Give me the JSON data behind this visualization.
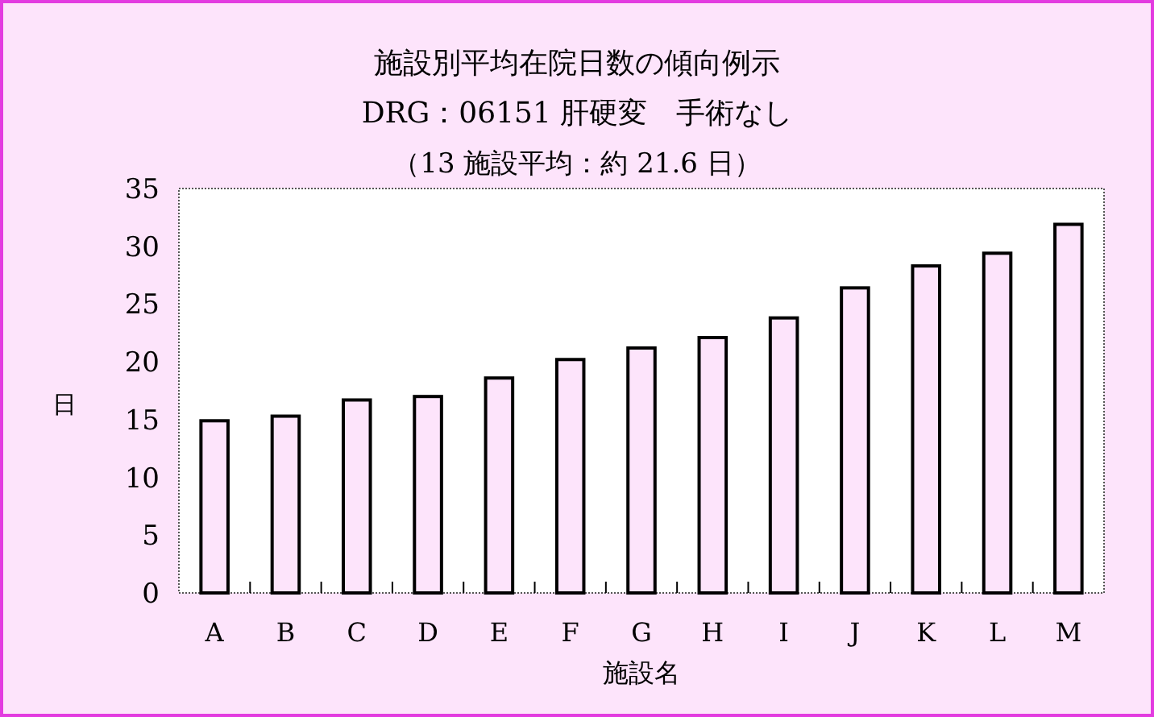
{
  "chart_data": {
    "type": "bar",
    "title": "施設別平均在院日数の傾向例示",
    "subtitle": "DRG：06151 肝硬変　手術なし",
    "annotations": [
      "（13 施設平均：約 21.6 日）"
    ],
    "xlabel": "施設名",
    "ylabel": "日",
    "categories": [
      "A",
      "B",
      "C",
      "D",
      "E",
      "F",
      "G",
      "H",
      "I",
      "J",
      "K",
      "L",
      "M"
    ],
    "values": [
      14.9,
      15.3,
      16.7,
      17.0,
      18.6,
      20.2,
      21.2,
      22.1,
      23.8,
      26.4,
      28.3,
      29.4,
      31.9
    ],
    "color": "#fde4fb",
    "ylim": [
      0,
      35
    ],
    "yticks": [
      0,
      5,
      10,
      15,
      20,
      25,
      30,
      35
    ]
  }
}
